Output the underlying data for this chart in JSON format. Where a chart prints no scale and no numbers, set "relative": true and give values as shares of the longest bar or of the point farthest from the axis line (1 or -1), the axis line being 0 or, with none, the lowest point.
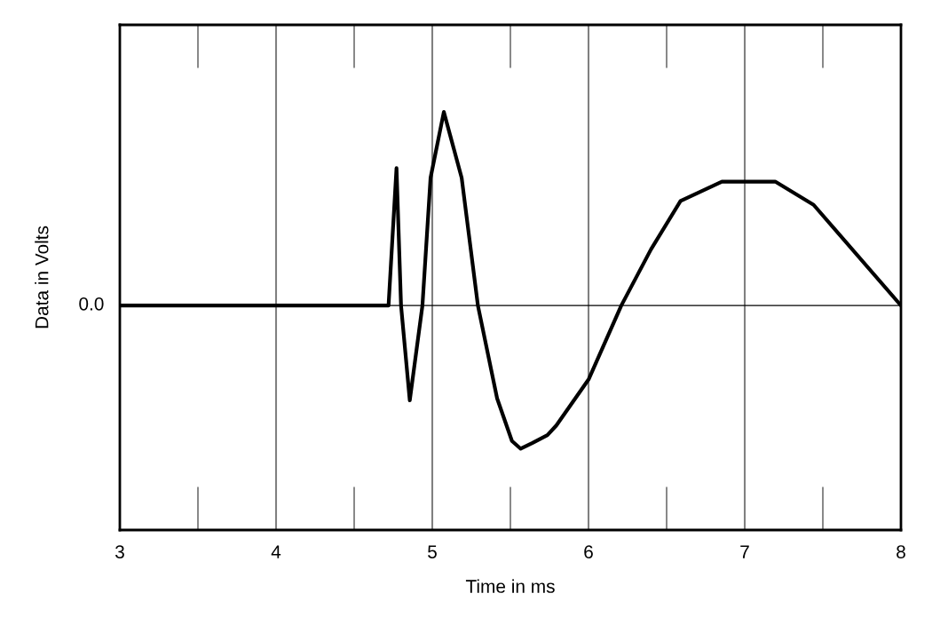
{
  "chart_data": {
    "type": "line",
    "xlabel": "Time in ms",
    "ylabel": "Data in Volts",
    "relative": true,
    "xlim": [
      3,
      8
    ],
    "xticks": [
      3,
      4,
      5,
      6,
      7,
      8
    ],
    "grid": "x",
    "marker": "none",
    "line_style": "solid",
    "ref_lines": [
      {
        "axis": "y",
        "value": 0,
        "label": "0.0",
        "color": "#000000"
      }
    ],
    "series": [
      {
        "color": "#000000",
        "x": [
          3,
          4.72,
          4.771,
          4.8,
          4.856,
          4.937,
          4.989,
          5.074,
          5.188,
          5.292,
          5.415,
          5.51,
          5.566,
          5.642,
          5.737,
          5.794,
          6.002,
          6.21,
          6.4,
          6.589,
          6.854,
          7.195,
          7.441,
          8
        ],
        "values": [
          0,
          0,
          0.71,
          0,
          -0.49,
          0,
          0.66,
          1,
          0.66,
          0,
          -0.48,
          -0.7,
          -0.74,
          -0.71,
          -0.67,
          -0.62,
          -0.38,
          0,
          0.29,
          0.54,
          0.64,
          0.64,
          0.52,
          0
        ]
      }
    ]
  }
}
